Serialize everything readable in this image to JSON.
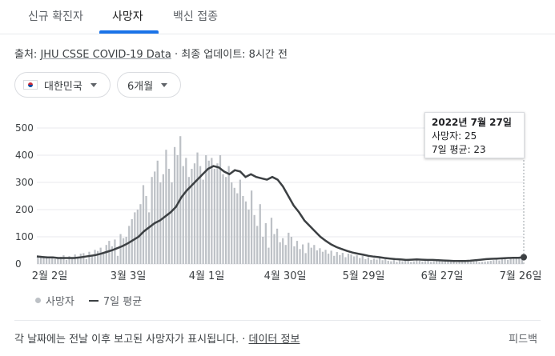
{
  "tabs": [
    {
      "label": "신규 확진자",
      "active": false
    },
    {
      "label": "사망자",
      "active": true
    },
    {
      "label": "백신 접종",
      "active": false
    }
  ],
  "source": {
    "prefix": "출처: ",
    "link_text": "JHU CSSE COVID-19 Data",
    "update_text": " · 최종 업데이트: 8시간 전"
  },
  "filters": {
    "country": "대한민국",
    "period": "6개월"
  },
  "colors": {
    "bar": "#bdc1c6",
    "avg_line": "#3c4043",
    "accent": "#1a73e8"
  },
  "chart_data": {
    "type": "bar",
    "y_ticks": [
      "500",
      "400",
      "300",
      "200",
      "100",
      "0"
    ],
    "x_tick_labels": [
      "2월 2일",
      "3월 3일",
      "4월 1일",
      "4월 30일",
      "5월 29일",
      "6월 27일",
      "7월 26일"
    ],
    "ylim": [
      0,
      500
    ],
    "legend": {
      "bars": "사망자",
      "line": "7일 평균"
    },
    "series": [
      {
        "name": "사망자",
        "kind": "bar",
        "values": [
          25,
          30,
          28,
          22,
          20,
          27,
          18,
          24,
          26,
          32,
          15,
          29,
          25,
          35,
          22,
          38,
          40,
          18,
          45,
          34,
          52,
          48,
          60,
          42,
          70,
          85,
          65,
          90,
          30,
          110,
          95,
          100,
          140,
          165,
          190,
          200,
          220,
          290,
          250,
          190,
          320,
          340,
          380,
          300,
          330,
          420,
          350,
          300,
          430,
          400,
          470,
          360,
          390,
          320,
          350,
          370,
          410,
          360,
          310,
          400,
          380,
          390,
          350,
          370,
          400,
          330,
          320,
          360,
          300,
          280,
          260,
          310,
          250,
          230,
          200,
          270,
          180,
          140,
          220,
          100,
          150,
          60,
          170,
          110,
          130,
          80,
          95,
          70,
          115,
          100,
          65,
          85,
          55,
          72,
          40,
          78,
          60,
          70,
          50,
          58,
          45,
          52,
          38,
          49,
          30,
          44,
          33,
          41,
          25,
          38,
          35,
          28,
          32,
          22,
          30,
          18,
          25,
          15,
          20,
          16,
          24,
          14,
          18,
          12,
          10,
          20,
          8,
          16,
          10,
          14,
          12,
          8,
          10,
          15,
          12,
          9,
          11,
          13,
          8,
          10,
          12,
          14,
          9,
          11,
          13,
          10,
          8,
          6,
          9,
          7,
          10,
          12,
          8,
          9,
          11,
          7,
          8,
          9,
          10,
          12,
          14,
          16,
          13,
          18,
          20,
          15,
          22,
          19,
          24,
          21,
          25
        ]
      },
      {
        "name": "7일 평균",
        "kind": "line",
        "values": [
          28,
          26,
          24,
          24,
          22,
          22,
          22,
          22,
          24,
          27,
          30,
          33,
          38,
          44,
          50,
          58,
          66,
          76,
          88,
          100,
          120,
          135,
          150,
          160,
          175,
          190,
          210,
          245,
          270,
          290,
          310,
          330,
          350,
          360,
          355,
          340,
          330,
          345,
          340,
          320,
          330,
          320,
          315,
          310,
          320,
          310,
          285,
          250,
          215,
          190,
          160,
          140,
          120,
          100,
          85,
          72,
          62,
          55,
          48,
          42,
          38,
          34,
          30,
          27,
          25,
          22,
          20,
          18,
          17,
          15,
          16,
          17,
          16,
          15,
          15,
          14,
          13,
          12,
          11,
          11,
          11,
          12,
          14,
          16,
          18,
          19,
          20,
          21,
          22,
          23,
          23,
          25
        ]
      }
    ],
    "tooltip": {
      "title": "2022년 7월 27일",
      "deaths": "사망자: 25",
      "avg": "7일 평균: 23"
    }
  },
  "footer": {
    "note": "각 날짜에는 전날 이후 보고된 사망자가 표시됩니다. · ",
    "link": "데이터 정보",
    "feedback": "피드백"
  }
}
